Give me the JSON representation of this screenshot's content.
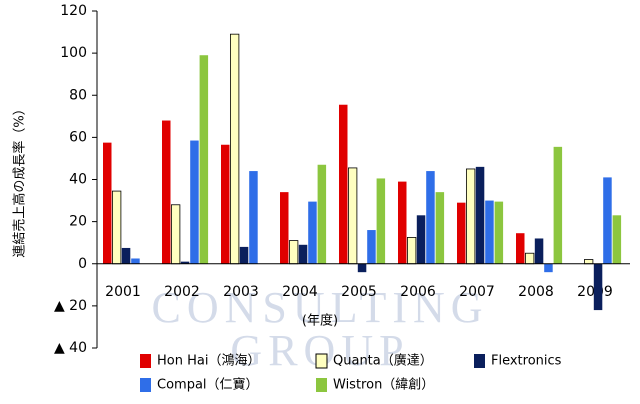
{
  "chart_data": {
    "type": "bar",
    "y_label": "連結売上高の成長率（%）",
    "x_label": "(年度)",
    "watermark": [
      "CONSULTING",
      "GROUP"
    ],
    "categories": [
      "2001",
      "2002",
      "2003",
      "2004",
      "2005",
      "2006",
      "2007",
      "2008",
      "2009"
    ],
    "series": [
      {
        "name": "Hon Hai（鴻海）",
        "color": "#e00000",
        "values": [
          57.5,
          68,
          56.5,
          34,
          75.5,
          39,
          29,
          14.5,
          null
        ]
      },
      {
        "name": "Quanta（廣達）",
        "color": "#ffffc0",
        "values": [
          34.5,
          28,
          109,
          11,
          45.5,
          12.5,
          45,
          5,
          2
        ]
      },
      {
        "name": "Flextronics",
        "color": "#0a1f5c",
        "values": [
          7.5,
          1,
          8,
          9,
          -4,
          23,
          46,
          12,
          -22
        ]
      },
      {
        "name": "Compal（仁寶）",
        "color": "#2f6ee8",
        "values": [
          2.5,
          58.5,
          44,
          29.5,
          16,
          44,
          30,
          -4,
          41
        ]
      },
      {
        "name": "Wistron（緯創）",
        "color": "#8cc63f",
        "values": [
          null,
          99,
          null,
          47,
          40.5,
          34,
          29.5,
          55.5,
          23
        ]
      }
    ],
    "ylim": [
      -40,
      120
    ],
    "yticks": [
      {
        "value": -40,
        "label": "▲ 40"
      },
      {
        "value": -20,
        "label": "▲ 20"
      },
      0,
      20,
      40,
      60,
      80,
      100,
      120
    ],
    "grid": false
  }
}
